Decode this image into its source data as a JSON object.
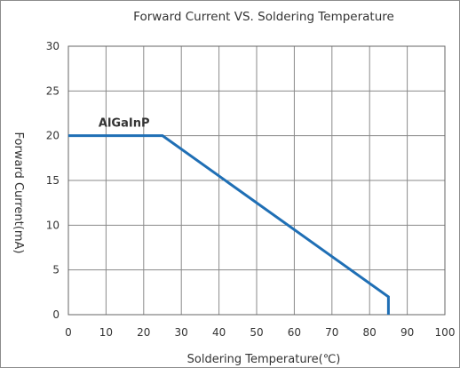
{
  "chart_data": {
    "type": "line",
    "title": "Forward Current VS. Soldering Temperature",
    "xlabel": "Soldering Temperature(℃)",
    "ylabel": "Forward  Current(mA)",
    "xlim": [
      0,
      100
    ],
    "ylim": [
      0,
      30
    ],
    "xticks": [
      0,
      10,
      20,
      30,
      40,
      50,
      60,
      70,
      80,
      90,
      100
    ],
    "yticks": [
      0,
      5,
      10,
      15,
      20,
      25,
      30
    ],
    "grid": true,
    "series": [
      {
        "name": "AlGaInP",
        "color": "#1f6fb5",
        "x": [
          0,
          25,
          85,
          85
        ],
        "y": [
          20,
          20,
          2,
          0
        ]
      }
    ],
    "annotations": [
      {
        "text": "AlGaInP",
        "x": 8,
        "y": 21
      }
    ]
  }
}
